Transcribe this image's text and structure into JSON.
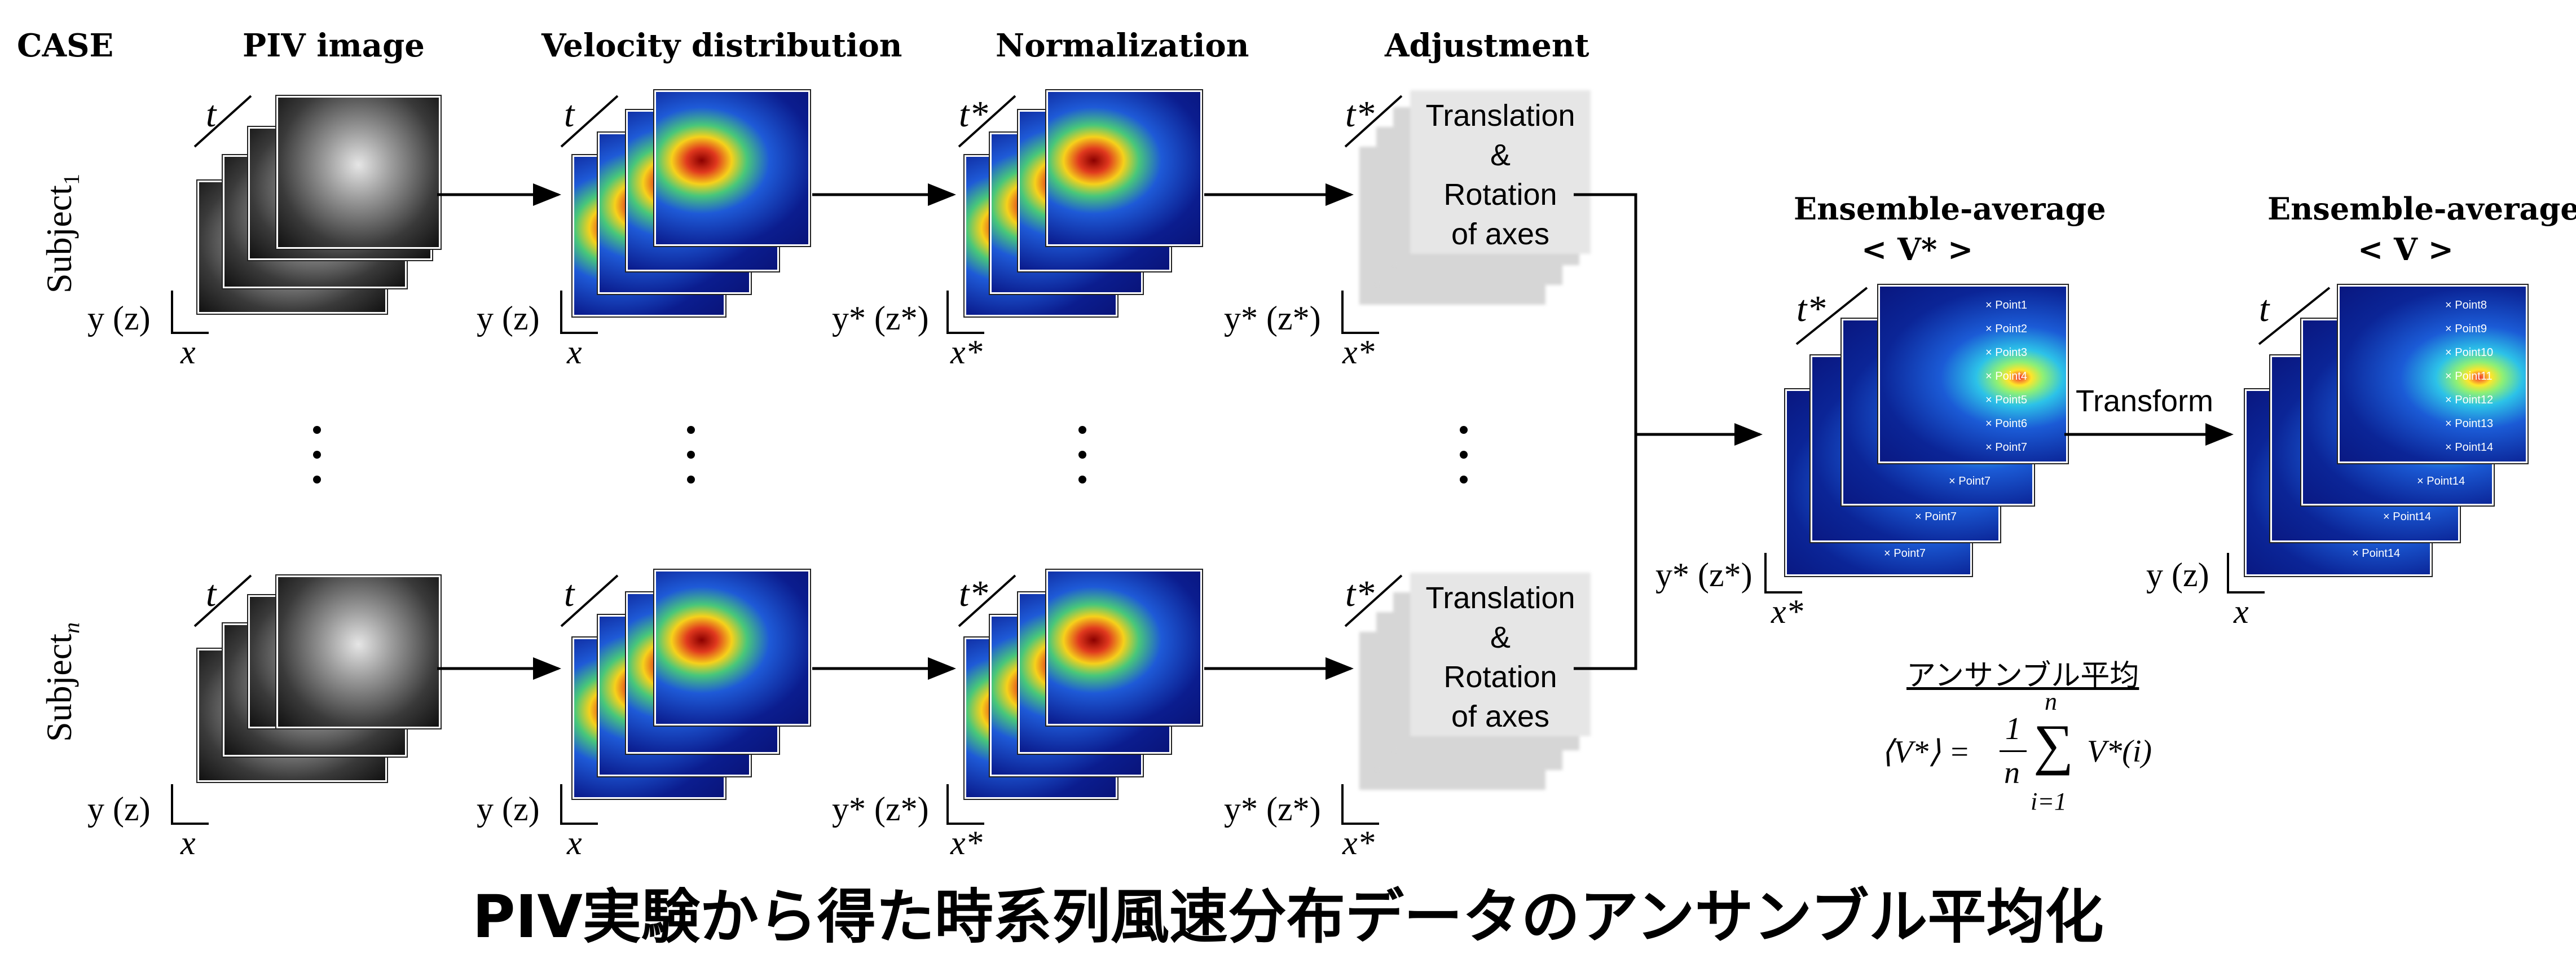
{
  "headers": {
    "case": "CASE",
    "piv": "PIV image",
    "velocity": "Velocity distribution",
    "normalization": "Normalization",
    "adjustment": "Adjustment"
  },
  "subjects": {
    "first": "Subject",
    "first_sub": "1",
    "last": "Subject",
    "last_sub": "n"
  },
  "labels": {
    "t": "t",
    "t_star": "t*",
    "y_z": "y (z)",
    "y_z_star": "y* (z*)",
    "x": "x",
    "x_star": "x*"
  },
  "adjustment_box": {
    "text": "Translation\n&\nRotation\nof axes"
  },
  "ensemble": {
    "left_title": "Ensemble-average",
    "left_symbol": "< V* >",
    "right_title": "Ensemble-average",
    "right_symbol": "< V >",
    "transform": "Transform",
    "left_points": [
      "Point1",
      "Point2",
      "Point3",
      "Point4",
      "Point5",
      "Point6",
      "Point7"
    ],
    "left_lower_points": [
      "Point7",
      "Point7",
      "Point7"
    ],
    "right_points": [
      "Point8",
      "Point9",
      "Point10",
      "Point11",
      "Point12",
      "Point13",
      "Point14"
    ],
    "right_lower_points": [
      "Point14",
      "Point14",
      "Point14"
    ]
  },
  "formula": {
    "heading": "アンサンブル平均",
    "lhs": "⟨V*⟩ =",
    "frac_num": "1",
    "frac_den": "n",
    "sum_top": "n",
    "sum_sym": "∑",
    "sum_bottom": "i=1",
    "term": "V*(i)"
  },
  "bottom_title": "PIV実験から得た時系列風速分布データのアンサンブル平均化"
}
